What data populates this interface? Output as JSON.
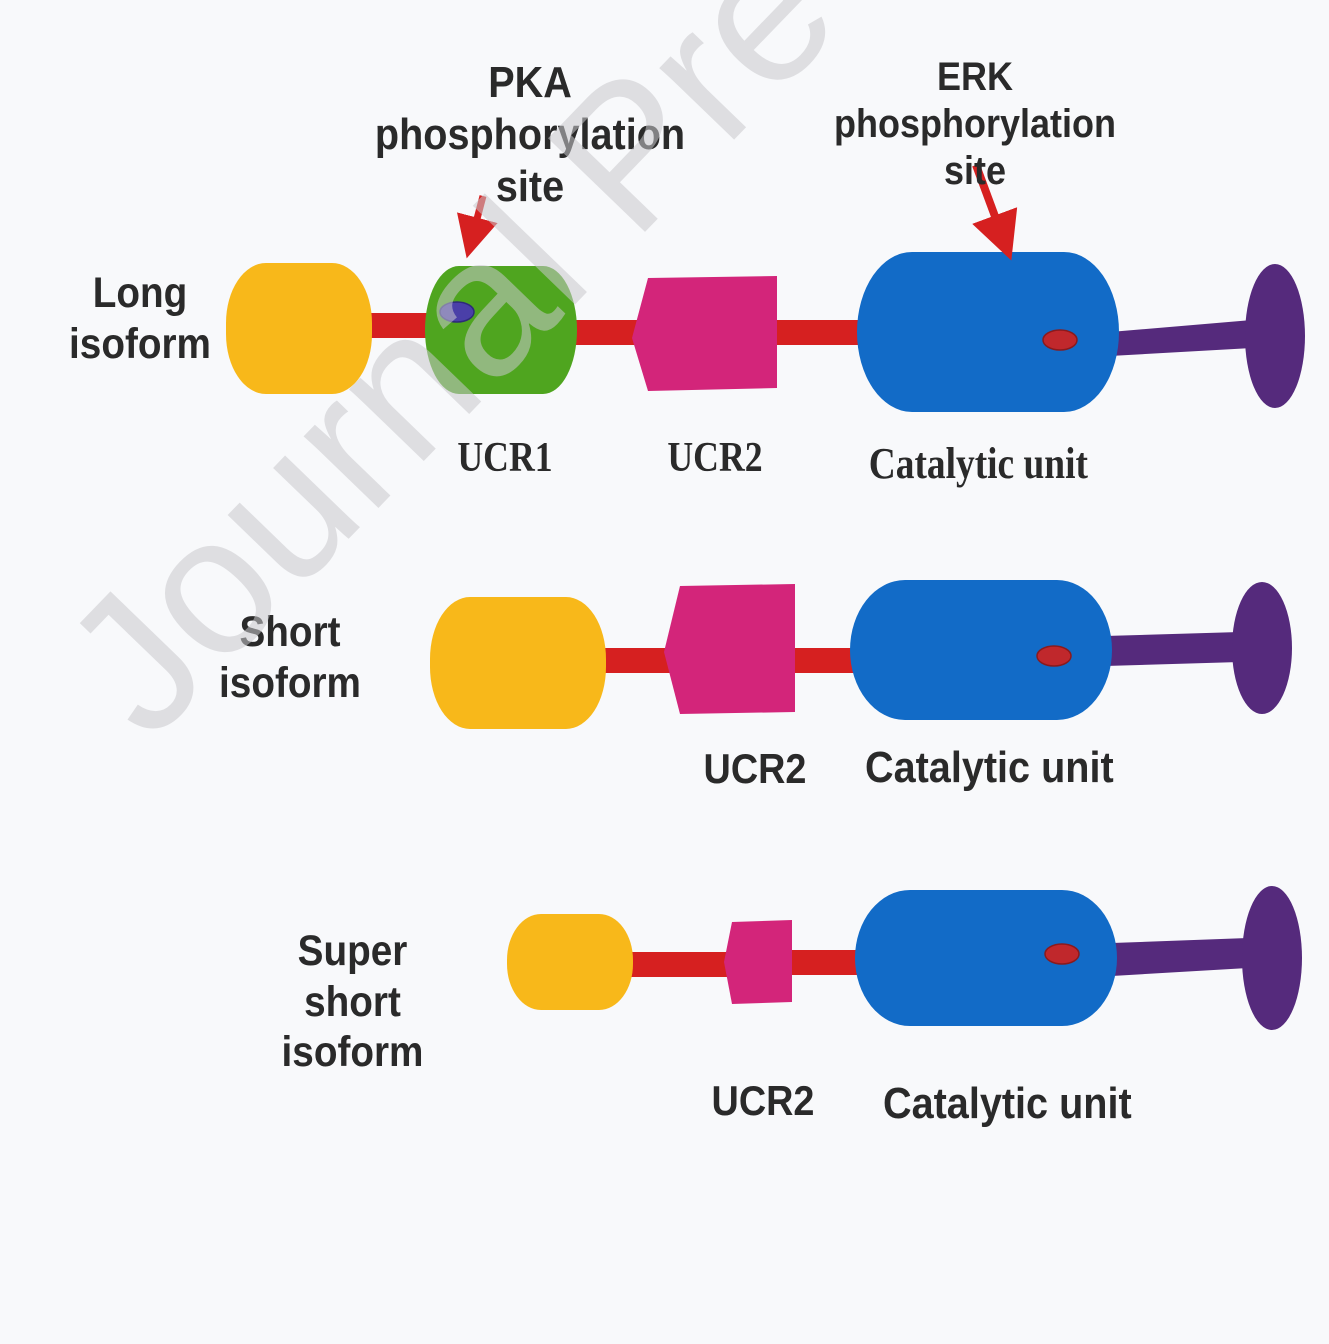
{
  "labels": {
    "pka_site": "PKA phosphorylation\nsite",
    "erk_site": "ERK phosphorylation\nsite",
    "long_isoform": "Long\nisoform",
    "short_isoform": "Short\nisoform",
    "super_short_isoform": "Super short\nisoform",
    "ucr1": "UCR1",
    "ucr2_long": "UCR2",
    "catalytic_long": "Catalytic unit",
    "ucr2_short": "UCR2",
    "catalytic_short": "Catalytic unit",
    "ucr2_super": "UCR2",
    "catalytic_super": "Catalytic unit"
  },
  "watermark": "Journal Pre-proof",
  "colors": {
    "n_terminal": "#f8b81a",
    "ucr1": "#4fa51f",
    "ucr2": "#d3257a",
    "catalytic": "#126bc7",
    "linker": "#d62020",
    "c_terminal": "#552a7c",
    "pka_dot": "#4a3fa8",
    "erk_dot": "#c0282c",
    "arrow": "#d62020"
  }
}
